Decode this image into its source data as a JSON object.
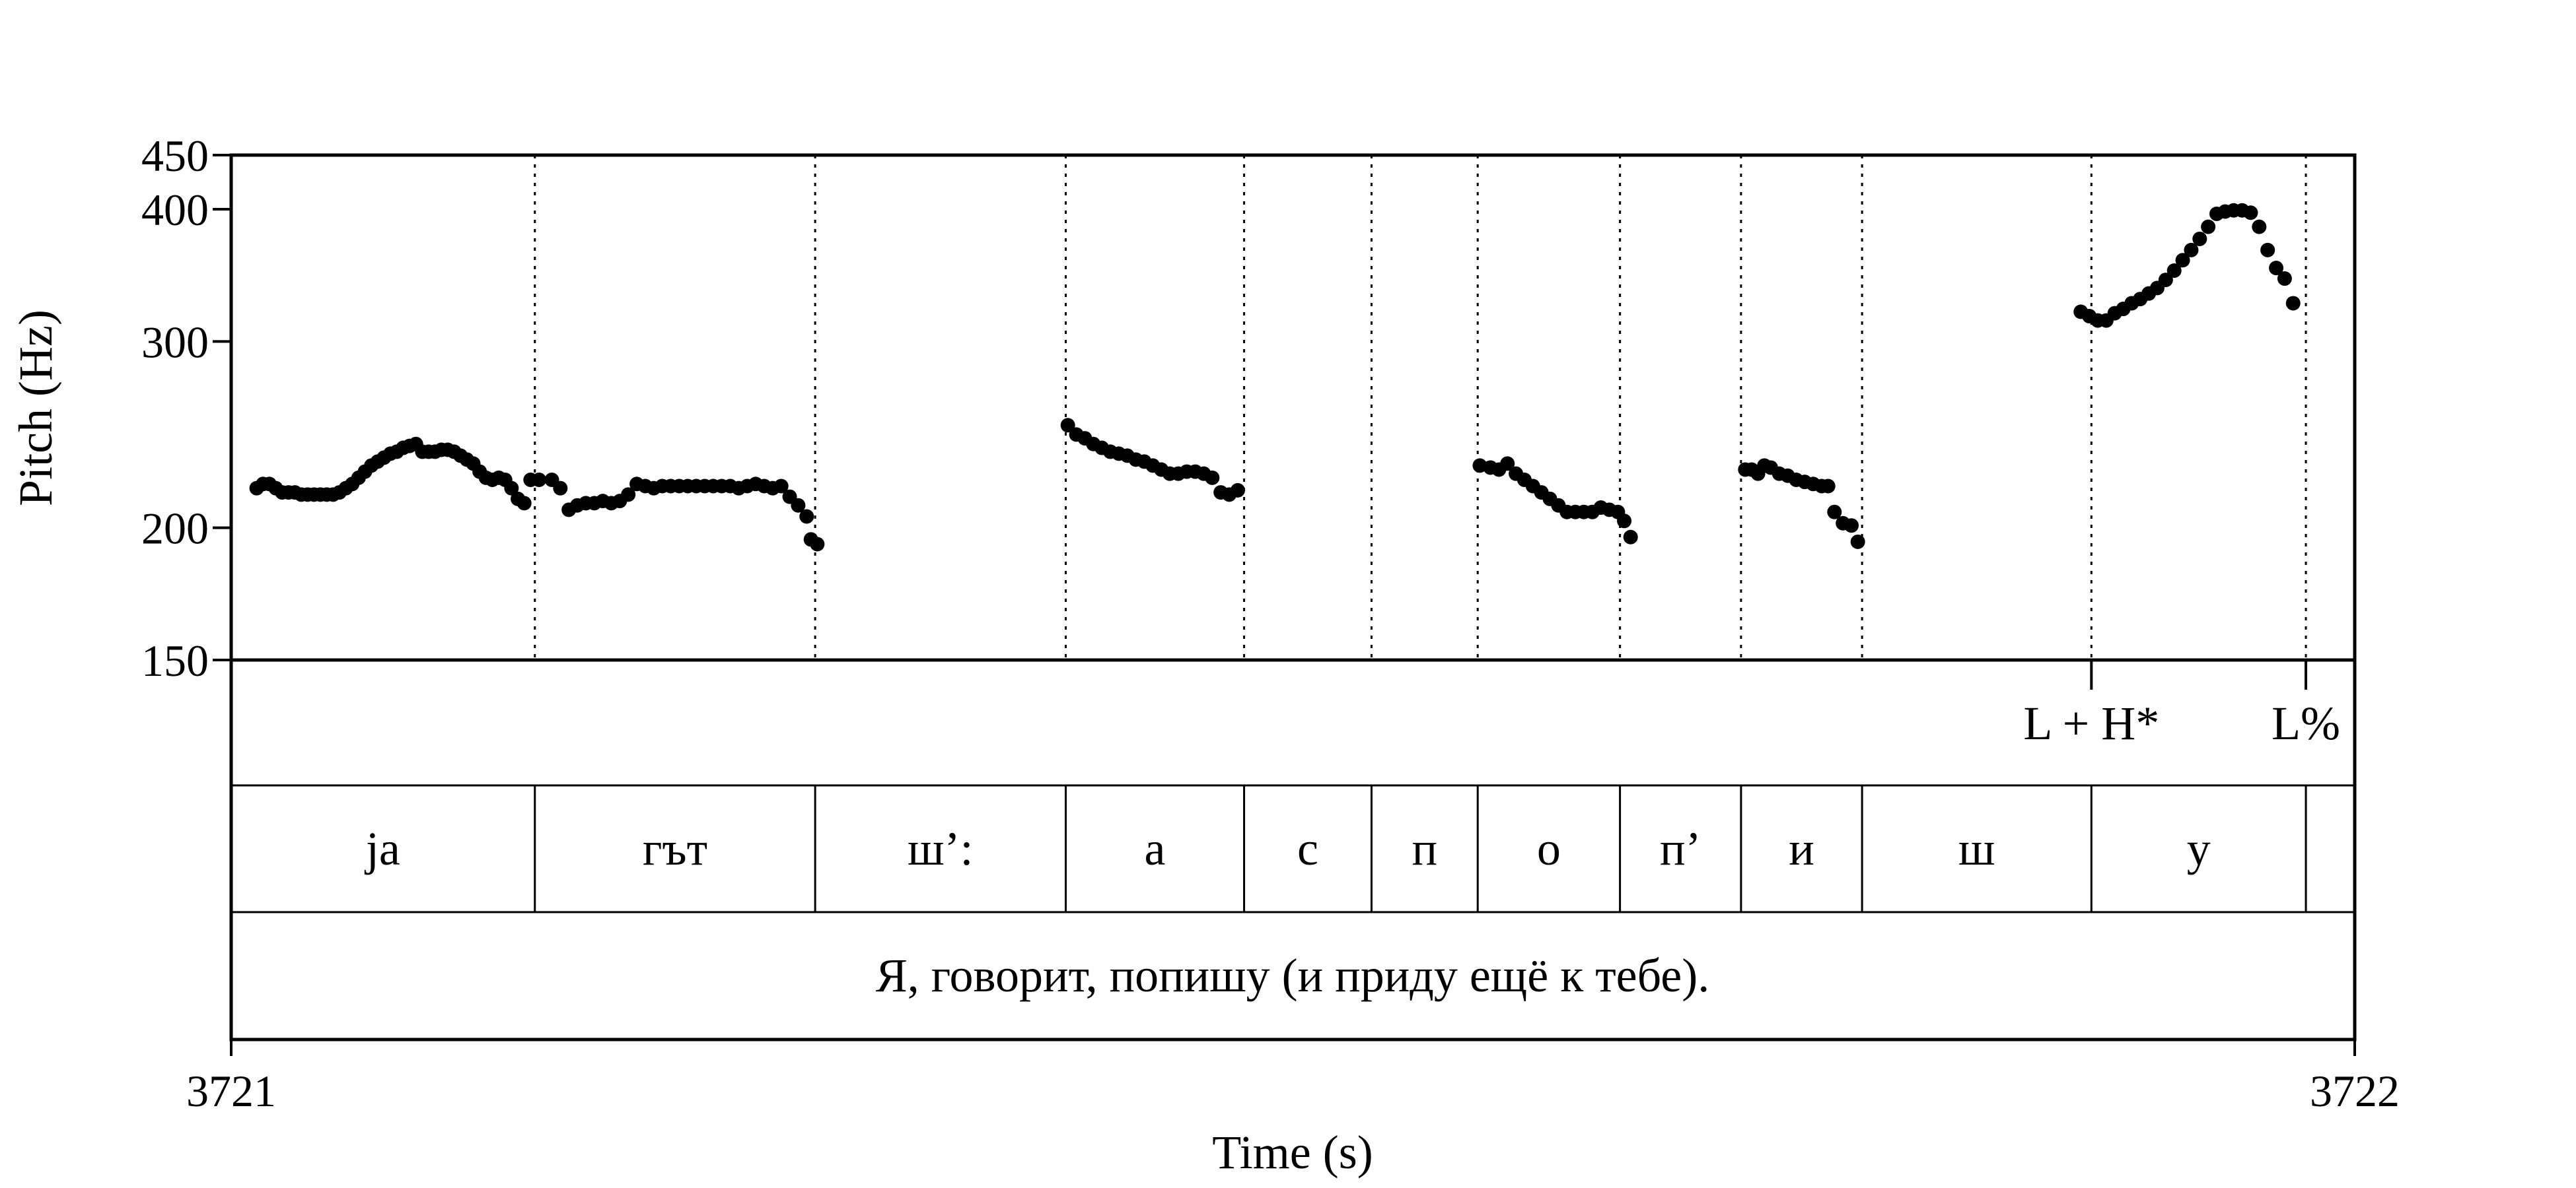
{
  "chart_data": {
    "type": "scatter",
    "title": "",
    "xlabel": "Time (s)",
    "ylabel": "Pitch (Hz)",
    "xlim": [
      3721,
      3722
    ],
    "ylim": [
      150,
      450
    ],
    "y_scale": "log",
    "x_ticks": [
      "3721",
      "3722"
    ],
    "y_ticks": [
      150,
      200,
      300,
      400,
      450
    ],
    "y_tick_labels": [
      "150",
      "200",
      "300",
      "400",
      "450"
    ],
    "grid": false,
    "boundaries": [
      3721.143,
      3721.275,
      3721.393,
      3721.477,
      3721.537,
      3721.587,
      3721.654,
      3721.711,
      3721.768,
      3721.876,
      3721.977
    ],
    "tones": [
      {
        "label": "L + H*",
        "time": 3721.876
      },
      {
        "label": "L%",
        "time": 3721.977
      }
    ],
    "segments": [
      {
        "label": "ja",
        "start": 3721.0,
        "end": 3721.143
      },
      {
        "label": "гът",
        "start": 3721.143,
        "end": 3721.275
      },
      {
        "label": "ш’:",
        "start": 3721.275,
        "end": 3721.393
      },
      {
        "label": "а",
        "start": 3721.393,
        "end": 3721.477
      },
      {
        "label": "с",
        "start": 3721.477,
        "end": 3721.537
      },
      {
        "label": "п",
        "start": 3721.537,
        "end": 3721.587
      },
      {
        "label": "о",
        "start": 3721.587,
        "end": 3721.654
      },
      {
        "label": "п’",
        "start": 3721.654,
        "end": 3721.711
      },
      {
        "label": "и",
        "start": 3721.711,
        "end": 3721.768
      },
      {
        "label": "ш",
        "start": 3721.768,
        "end": 3721.876
      },
      {
        "label": "у",
        "start": 3721.876,
        "end": 3721.977
      }
    ],
    "sentence": "Я, говорит, попишу (и приду ещё к тебе).",
    "series": [
      {
        "x": [
          3721.012,
          3721.015,
          3721.018,
          3721.021,
          3721.024,
          3721.027,
          3721.03,
          3721.033,
          3721.036,
          3721.039,
          3721.042,
          3721.045,
          3721.048,
          3721.051,
          3721.054,
          3721.057,
          3721.06,
          3721.063,
          3721.066,
          3721.069,
          3721.072,
          3721.075,
          3721.078,
          3721.081,
          3721.084,
          3721.087,
          3721.09,
          3721.093,
          3721.096,
          3721.099,
          3721.102,
          3721.105,
          3721.108,
          3721.111,
          3721.114,
          3721.117,
          3721.12,
          3721.123,
          3721.126,
          3721.129,
          3721.132,
          3721.135,
          3721.138,
          3721.141,
          3721.145
        ],
        "y": [
          218,
          220,
          220,
          218,
          216,
          216,
          216,
          215,
          215,
          215,
          215,
          215,
          215,
          216,
          218,
          220,
          223,
          226,
          229,
          231,
          233,
          235,
          236,
          238,
          239,
          240,
          236,
          236,
          236,
          237,
          237,
          236,
          234,
          232,
          230,
          226,
          223,
          222,
          223,
          222,
          218,
          213,
          211,
          222,
          222
        ]
      },
      {
        "x": [
          3721.151,
          3721.155,
          3721.159,
          3721.163,
          3721.167,
          3721.171,
          3721.175,
          3721.179,
          3721.183,
          3721.187,
          3721.191,
          3721.195,
          3721.199,
          3721.203,
          3721.207,
          3721.211,
          3721.215,
          3721.219,
          3721.223,
          3721.227,
          3721.231,
          3721.235,
          3721.239,
          3721.243,
          3721.247,
          3721.251,
          3721.255,
          3721.259,
          3721.263,
          3721.267,
          3721.271
        ],
        "y": [
          222,
          218,
          208,
          210,
          211,
          211,
          212,
          211,
          212,
          215,
          220,
          219,
          218,
          219,
          219,
          219,
          219,
          219,
          219,
          219,
          219,
          219,
          218,
          219,
          220,
          219,
          218,
          219,
          214,
          210,
          205
        ]
      },
      {
        "x": [
          3721.273,
          3721.276
        ],
        "y": [
          195,
          193
        ]
      },
      {
        "x": [
          3721.394,
          3721.398,
          3721.402,
          3721.406,
          3721.41,
          3721.414,
          3721.418,
          3721.422,
          3721.426,
          3721.43,
          3721.434,
          3721.438,
          3721.442,
          3721.446,
          3721.45,
          3721.454,
          3721.458,
          3721.462,
          3721.466,
          3721.47,
          3721.474
        ],
        "y": [
          250,
          245,
          243,
          240,
          238,
          236,
          235,
          234,
          232,
          231,
          229,
          227,
          225,
          225,
          226,
          226,
          225,
          223,
          216,
          215,
          217
        ]
      },
      {
        "x": [
          3721.588,
          3721.593,
          3721.597,
          3721.601,
          3721.605,
          3721.609,
          3721.613,
          3721.617,
          3721.621,
          3721.625,
          3721.629,
          3721.633,
          3721.637,
          3721.641,
          3721.645,
          3721.649,
          3721.653,
          3721.656
        ],
        "y": [
          229,
          228,
          227,
          230,
          225,
          222,
          219,
          216,
          213,
          210,
          207,
          207,
          207,
          207,
          209,
          208,
          207,
          203
        ]
      },
      {
        "x": [
          3721.659
        ],
        "y": [
          196
        ]
      },
      {
        "x": [
          3721.713,
          3721.716,
          3721.719,
          3721.722,
          3721.725,
          3721.729,
          3721.733,
          3721.737,
          3721.741,
          3721.745,
          3721.749,
          3721.752
        ],
        "y": [
          227,
          227,
          225,
          229,
          228,
          225,
          224,
          222,
          221,
          220,
          219,
          219
        ]
      },
      {
        "x": [
          3721.755,
          3721.759,
          3721.763,
          3721.766
        ],
        "y": [
          207,
          202,
          201,
          194
        ]
      },
      {
        "x": [
          3721.871,
          3721.875,
          3721.879,
          3721.883,
          3721.887,
          3721.891,
          3721.895,
          3721.899,
          3721.903,
          3721.907,
          3721.911,
          3721.915,
          3721.919,
          3721.923,
          3721.927,
          3721.931,
          3721.935,
          3721.939,
          3721.943,
          3721.947,
          3721.951,
          3721.955,
          3721.959,
          3721.963,
          3721.967,
          3721.971
        ],
        "y": [
          320,
          317,
          314,
          314,
          319,
          322,
          326,
          329,
          333,
          337,
          343,
          350,
          358,
          366,
          375,
          385,
          396,
          398,
          399,
          399,
          397,
          385,
          366,
          352,
          344,
          326
        ]
      }
    ]
  }
}
